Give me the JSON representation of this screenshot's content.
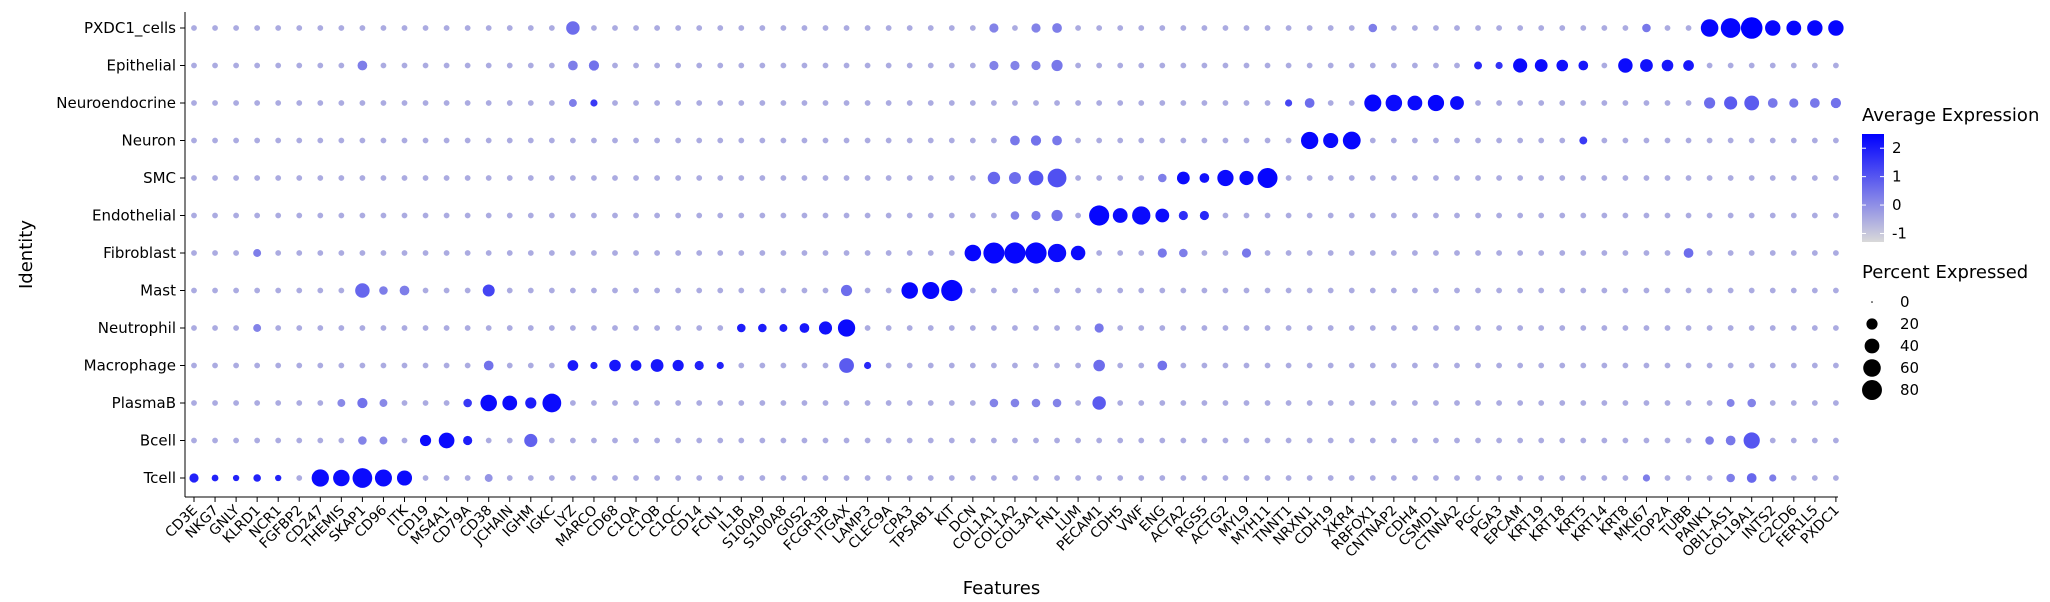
{
  "chart_data": {
    "type": "dotplot",
    "xlabel": "Features",
    "ylabel": "Identity",
    "identities": [
      "PXDC1_cells",
      "Epithelial",
      "Neuroendocrine",
      "Neuron",
      "SMC",
      "Endothelial",
      "Fibroblast",
      "Mast",
      "Neutrophil",
      "Macrophage",
      "PlasmaB",
      "Bcell",
      "Tcell"
    ],
    "features": [
      "CD3E",
      "NKG7",
      "GNLY",
      "KLRD1",
      "NCR1",
      "FGFBP2",
      "CD247",
      "THEMIS",
      "SKAP1",
      "CD96",
      "ITK",
      "CD19",
      "MS4A1",
      "CD79A",
      "CD38",
      "JCHAIN",
      "IGHM",
      "IGKC",
      "LYZ",
      "MARCO",
      "CD68",
      "C1QA",
      "C1QB",
      "C1QC",
      "CD14",
      "FCN1",
      "IL1B",
      "S100A9",
      "S100A8",
      "G0S2",
      "FCGR3B",
      "ITGAX",
      "LAMP3",
      "CLEC9A",
      "CPA3",
      "TPSAB1",
      "KIT",
      "DCN",
      "COL1A1",
      "COL1A2",
      "COL3A1",
      "FN1",
      "LUM",
      "PECAM1",
      "CDH5",
      "VWF",
      "ENG",
      "ACTA2",
      "RGS5",
      "ACTG2",
      "MYL9",
      "MYH11",
      "TNNT1",
      "NRXN1",
      "CDH19",
      "XKR4",
      "RBFOX1",
      "CNTNAP2",
      "CDH4",
      "CSMD1",
      "CTNNA2",
      "PGC",
      "PGA3",
      "EPCAM",
      "KRT19",
      "KRT18",
      "KRT5",
      "KRT14",
      "KRT8",
      "MKI67",
      "TOP2A",
      "TUBB",
      "PANK1",
      "OBI1-AS1",
      "COL19A1",
      "INTS2",
      "C2CD6",
      "FER1L5",
      "PXDC1"
    ],
    "legend": {
      "color_title": "Average Expression",
      "color_ticks": [
        2,
        1,
        0,
        -1
      ],
      "color_range": [
        -1.3,
        2.5
      ],
      "color_low": "#d9d9d9",
      "color_high": "#0000ff",
      "size_title": "Percent Expressed",
      "size_ticks": [
        0,
        20,
        40,
        60,
        80
      ],
      "position": "right"
    },
    "background_level": {
      "avg_exp": -0.5,
      "pct_exp": 3
    },
    "cells": [
      {
        "row": "Tcell",
        "feature": "CD3E",
        "avg_exp": 1.9,
        "pct_exp": 12
      },
      {
        "row": "Tcell",
        "feature": "NKG7",
        "avg_exp": 1.9,
        "pct_exp": 5
      },
      {
        "row": "Tcell",
        "feature": "GNLY",
        "avg_exp": 1.9,
        "pct_exp": 4
      },
      {
        "row": "Tcell",
        "feature": "KLRD1",
        "avg_exp": 1.9,
        "pct_exp": 7
      },
      {
        "row": "Tcell",
        "feature": "NCR1",
        "avg_exp": 1.9,
        "pct_exp": 4
      },
      {
        "row": "Tcell",
        "feature": "CD247",
        "avg_exp": 2.3,
        "pct_exp": 58
      },
      {
        "row": "Tcell",
        "feature": "THEMIS",
        "avg_exp": 2.3,
        "pct_exp": 52
      },
      {
        "row": "Tcell",
        "feature": "SKAP1",
        "avg_exp": 2.3,
        "pct_exp": 78
      },
      {
        "row": "Tcell",
        "feature": "CD96",
        "avg_exp": 2.3,
        "pct_exp": 56
      },
      {
        "row": "Tcell",
        "feature": "ITK",
        "avg_exp": 2.3,
        "pct_exp": 42
      },
      {
        "row": "Tcell",
        "feature": "CD38",
        "avg_exp": -0.1,
        "pct_exp": 8
      },
      {
        "row": "Tcell",
        "feature": "MKI67",
        "avg_exp": 0.3,
        "pct_exp": 6
      },
      {
        "row": "Tcell",
        "feature": "OBI1-AS1",
        "avg_exp": 0.3,
        "pct_exp": 10
      },
      {
        "row": "Tcell",
        "feature": "COL19A1",
        "avg_exp": 0.7,
        "pct_exp": 14
      },
      {
        "row": "Tcell",
        "feature": "INTS2",
        "avg_exp": 0.3,
        "pct_exp": 6
      },
      {
        "row": "Bcell",
        "feature": "SKAP1",
        "avg_exp": 0.2,
        "pct_exp": 10
      },
      {
        "row": "Bcell",
        "feature": "CD96",
        "avg_exp": 0.1,
        "pct_exp": 8
      },
      {
        "row": "Bcell",
        "feature": "CD19",
        "avg_exp": 2.3,
        "pct_exp": 20
      },
      {
        "row": "Bcell",
        "feature": "MS4A1",
        "avg_exp": 2.3,
        "pct_exp": 46
      },
      {
        "row": "Bcell",
        "feature": "CD79A",
        "avg_exp": 2.0,
        "pct_exp": 12
      },
      {
        "row": "Bcell",
        "feature": "IGHM",
        "avg_exp": 0.8,
        "pct_exp": 30
      },
      {
        "row": "Bcell",
        "feature": "PANK1",
        "avg_exp": 0.3,
        "pct_exp": 10
      },
      {
        "row": "Bcell",
        "feature": "OBI1-AS1",
        "avg_exp": 0.4,
        "pct_exp": 14
      },
      {
        "row": "Bcell",
        "feature": "COL19A1",
        "avg_exp": 1.0,
        "pct_exp": 50
      },
      {
        "row": "PlasmaB",
        "feature": "THEMIS",
        "avg_exp": 0.1,
        "pct_exp": 8
      },
      {
        "row": "PlasmaB",
        "feature": "SKAP1",
        "avg_exp": 0.5,
        "pct_exp": 16
      },
      {
        "row": "PlasmaB",
        "feature": "CD96",
        "avg_exp": 0.1,
        "pct_exp": 8
      },
      {
        "row": "PlasmaB",
        "feature": "CD79A",
        "avg_exp": 1.5,
        "pct_exp": 10
      },
      {
        "row": "PlasmaB",
        "feature": "CD38",
        "avg_exp": 2.3,
        "pct_exp": 52
      },
      {
        "row": "PlasmaB",
        "feature": "JCHAIN",
        "avg_exp": 2.3,
        "pct_exp": 40
      },
      {
        "row": "PlasmaB",
        "feature": "IGHM",
        "avg_exp": 2.0,
        "pct_exp": 20
      },
      {
        "row": "PlasmaB",
        "feature": "IGKC",
        "avg_exp": 2.3,
        "pct_exp": 70
      },
      {
        "row": "PlasmaB",
        "feature": "COL1A1",
        "avg_exp": 0.2,
        "pct_exp": 10
      },
      {
        "row": "PlasmaB",
        "feature": "COL1A2",
        "avg_exp": 0.2,
        "pct_exp": 10
      },
      {
        "row": "PlasmaB",
        "feature": "COL3A1",
        "avg_exp": 0.2,
        "pct_exp": 10
      },
      {
        "row": "PlasmaB",
        "feature": "FN1",
        "avg_exp": 0.2,
        "pct_exp": 10
      },
      {
        "row": "PlasmaB",
        "feature": "PECAM1",
        "avg_exp": 0.9,
        "pct_exp": 32
      },
      {
        "row": "PlasmaB",
        "feature": "OBI1-AS1",
        "avg_exp": 0.2,
        "pct_exp": 8
      },
      {
        "row": "PlasmaB",
        "feature": "COL19A1",
        "avg_exp": 0.2,
        "pct_exp": 10
      },
      {
        "row": "Macrophage",
        "feature": "CD38",
        "avg_exp": 0.5,
        "pct_exp": 14
      },
      {
        "row": "Macrophage",
        "feature": "LYZ",
        "avg_exp": 2.1,
        "pct_exp": 18
      },
      {
        "row": "Macrophage",
        "feature": "MARCO",
        "avg_exp": 1.9,
        "pct_exp": 6
      },
      {
        "row": "Macrophage",
        "feature": "CD68",
        "avg_exp": 2.1,
        "pct_exp": 22
      },
      {
        "row": "Macrophage",
        "feature": "C1QA",
        "avg_exp": 2.1,
        "pct_exp": 18
      },
      {
        "row": "Macrophage",
        "feature": "C1QB",
        "avg_exp": 2.1,
        "pct_exp": 28
      },
      {
        "row": "Macrophage",
        "feature": "C1QC",
        "avg_exp": 2.1,
        "pct_exp": 20
      },
      {
        "row": "Macrophage",
        "feature": "CD14",
        "avg_exp": 1.9,
        "pct_exp": 12
      },
      {
        "row": "Macrophage",
        "feature": "FCN1",
        "avg_exp": 1.9,
        "pct_exp": 6
      },
      {
        "row": "Macrophage",
        "feature": "ITGAX",
        "avg_exp": 0.9,
        "pct_exp": 40
      },
      {
        "row": "Macrophage",
        "feature": "LAMP3",
        "avg_exp": 1.8,
        "pct_exp": 6
      },
      {
        "row": "Macrophage",
        "feature": "PECAM1",
        "avg_exp": 0.6,
        "pct_exp": 22
      },
      {
        "row": "Macrophage",
        "feature": "ENG",
        "avg_exp": 0.5,
        "pct_exp": 14
      },
      {
        "row": "Neutrophil",
        "feature": "KLRD1",
        "avg_exp": 0.2,
        "pct_exp": 8
      },
      {
        "row": "Neutrophil",
        "feature": "IL1B",
        "avg_exp": 2.0,
        "pct_exp": 10
      },
      {
        "row": "Neutrophil",
        "feature": "S100A9",
        "avg_exp": 2.0,
        "pct_exp": 10
      },
      {
        "row": "Neutrophil",
        "feature": "S100A8",
        "avg_exp": 2.0,
        "pct_exp": 8
      },
      {
        "row": "Neutrophil",
        "feature": "G0S2",
        "avg_exp": 2.1,
        "pct_exp": 14
      },
      {
        "row": "Neutrophil",
        "feature": "FCGR3B",
        "avg_exp": 2.2,
        "pct_exp": 30
      },
      {
        "row": "Neutrophil",
        "feature": "ITGAX",
        "avg_exp": 2.3,
        "pct_exp": 58
      },
      {
        "row": "Neutrophil",
        "feature": "PECAM1",
        "avg_exp": 0.4,
        "pct_exp": 12
      },
      {
        "row": "Mast",
        "feature": "SKAP1",
        "avg_exp": 0.7,
        "pct_exp": 38
      },
      {
        "row": "Mast",
        "feature": "CD96",
        "avg_exp": 0.3,
        "pct_exp": 10
      },
      {
        "row": "Mast",
        "feature": "ITK",
        "avg_exp": 0.3,
        "pct_exp": 14
      },
      {
        "row": "Mast",
        "feature": "CD38",
        "avg_exp": 1.3,
        "pct_exp": 24
      },
      {
        "row": "Mast",
        "feature": "ITGAX",
        "avg_exp": 0.6,
        "pct_exp": 20
      },
      {
        "row": "Mast",
        "feature": "CPA3",
        "avg_exp": 2.4,
        "pct_exp": 52
      },
      {
        "row": "Mast",
        "feature": "TPSAB1",
        "avg_exp": 2.4,
        "pct_exp": 56
      },
      {
        "row": "Mast",
        "feature": "KIT",
        "avg_exp": 2.4,
        "pct_exp": 92
      },
      {
        "row": "Fibroblast",
        "feature": "KLRD1",
        "avg_exp": 0.3,
        "pct_exp": 8
      },
      {
        "row": "Fibroblast",
        "feature": "DCN",
        "avg_exp": 2.4,
        "pct_exp": 52
      },
      {
        "row": "Fibroblast",
        "feature": "COL1A1",
        "avg_exp": 2.4,
        "pct_exp": 90
      },
      {
        "row": "Fibroblast",
        "feature": "COL1A2",
        "avg_exp": 2.4,
        "pct_exp": 92
      },
      {
        "row": "Fibroblast",
        "feature": "COL3A1",
        "avg_exp": 2.4,
        "pct_exp": 92
      },
      {
        "row": "Fibroblast",
        "feature": "FN1",
        "avg_exp": 2.3,
        "pct_exp": 66
      },
      {
        "row": "Fibroblast",
        "feature": "LUM",
        "avg_exp": 2.3,
        "pct_exp": 38
      },
      {
        "row": "Fibroblast",
        "feature": "ENG",
        "avg_exp": 0.4,
        "pct_exp": 12
      },
      {
        "row": "Fibroblast",
        "feature": "ACTA2",
        "avg_exp": 0.3,
        "pct_exp": 10
      },
      {
        "row": "Fibroblast",
        "feature": "MYL9",
        "avg_exp": 0.4,
        "pct_exp": 12
      },
      {
        "row": "Fibroblast",
        "feature": "TUBB",
        "avg_exp": 0.6,
        "pct_exp": 14
      },
      {
        "row": "Endothelial",
        "feature": "COL1A2",
        "avg_exp": 0.2,
        "pct_exp": 10
      },
      {
        "row": "Endothelial",
        "feature": "COL3A1",
        "avg_exp": 0.3,
        "pct_exp": 12
      },
      {
        "row": "Endothelial",
        "feature": "FN1",
        "avg_exp": 0.5,
        "pct_exp": 20
      },
      {
        "row": "Endothelial",
        "feature": "PECAM1",
        "avg_exp": 2.4,
        "pct_exp": 82
      },
      {
        "row": "Endothelial",
        "feature": "CDH5",
        "avg_exp": 2.3,
        "pct_exp": 40
      },
      {
        "row": "Endothelial",
        "feature": "VWF",
        "avg_exp": 2.3,
        "pct_exp": 66
      },
      {
        "row": "Endothelial",
        "feature": "ENG",
        "avg_exp": 2.3,
        "pct_exp": 34
      },
      {
        "row": "Endothelial",
        "feature": "ACTA2",
        "avg_exp": 1.7,
        "pct_exp": 12
      },
      {
        "row": "Endothelial",
        "feature": "RGS5",
        "avg_exp": 1.8,
        "pct_exp": 12
      },
      {
        "row": "SMC",
        "feature": "COL1A1",
        "avg_exp": 0.7,
        "pct_exp": 26
      },
      {
        "row": "SMC",
        "feature": "COL1A2",
        "avg_exp": 0.6,
        "pct_exp": 24
      },
      {
        "row": "SMC",
        "feature": "COL3A1",
        "avg_exp": 1.0,
        "pct_exp": 40
      },
      {
        "row": "SMC",
        "feature": "FN1",
        "avg_exp": 1.1,
        "pct_exp": 70
      },
      {
        "row": "SMC",
        "feature": "ENG",
        "avg_exp": 0.3,
        "pct_exp": 10
      },
      {
        "row": "SMC",
        "feature": "ACTA2",
        "avg_exp": 2.3,
        "pct_exp": 28
      },
      {
        "row": "SMC",
        "feature": "RGS5",
        "avg_exp": 2.2,
        "pct_exp": 14
      },
      {
        "row": "SMC",
        "feature": "ACTG2",
        "avg_exp": 2.3,
        "pct_exp": 50
      },
      {
        "row": "SMC",
        "feature": "MYL9",
        "avg_exp": 2.3,
        "pct_exp": 36
      },
      {
        "row": "SMC",
        "feature": "MYH11",
        "avg_exp": 2.4,
        "pct_exp": 80
      },
      {
        "row": "Neuron",
        "feature": "COL1A2",
        "avg_exp": 0.4,
        "pct_exp": 14
      },
      {
        "row": "Neuron",
        "feature": "COL3A1",
        "avg_exp": 0.5,
        "pct_exp": 16
      },
      {
        "row": "Neuron",
        "feature": "FN1",
        "avg_exp": 0.4,
        "pct_exp": 14
      },
      {
        "row": "Neuron",
        "feature": "NRXN1",
        "avg_exp": 2.4,
        "pct_exp": 58
      },
      {
        "row": "Neuron",
        "feature": "CDH19",
        "avg_exp": 2.3,
        "pct_exp": 42
      },
      {
        "row": "Neuron",
        "feature": "XKR4",
        "avg_exp": 2.4,
        "pct_exp": 62
      },
      {
        "row": "Neuron",
        "feature": "KRT5",
        "avg_exp": 1.5,
        "pct_exp": 8
      },
      {
        "row": "Neuroendocrine",
        "feature": "LYZ",
        "avg_exp": 0.3,
        "pct_exp": 8
      },
      {
        "row": "Neuroendocrine",
        "feature": "MARCO",
        "avg_exp": 1.5,
        "pct_exp": 6
      },
      {
        "row": "Neuroendocrine",
        "feature": "TNNT1",
        "avg_exp": 1.3,
        "pct_exp": 6
      },
      {
        "row": "Neuroendocrine",
        "feature": "NRXN1",
        "avg_exp": 0.6,
        "pct_exp": 14
      },
      {
        "row": "Neuroendocrine",
        "feature": "RBFOX1",
        "avg_exp": 2.4,
        "pct_exp": 56
      },
      {
        "row": "Neuroendocrine",
        "feature": "CNTNAP2",
        "avg_exp": 2.3,
        "pct_exp": 52
      },
      {
        "row": "Neuroendocrine",
        "feature": "CDH4",
        "avg_exp": 2.3,
        "pct_exp": 40
      },
      {
        "row": "Neuroendocrine",
        "feature": "CSMD1",
        "avg_exp": 2.4,
        "pct_exp": 50
      },
      {
        "row": "Neuroendocrine",
        "feature": "CTNNA2",
        "avg_exp": 2.3,
        "pct_exp": 34
      },
      {
        "row": "Neuroendocrine",
        "feature": "PANK1",
        "avg_exp": 0.6,
        "pct_exp": 20
      },
      {
        "row": "Neuroendocrine",
        "feature": "OBI1-AS1",
        "avg_exp": 0.9,
        "pct_exp": 30
      },
      {
        "row": "Neuroendocrine",
        "feature": "COL19A1",
        "avg_exp": 0.9,
        "pct_exp": 40
      },
      {
        "row": "Neuroendocrine",
        "feature": "INTS2",
        "avg_exp": 0.4,
        "pct_exp": 14
      },
      {
        "row": "Neuroendocrine",
        "feature": "C2CD6",
        "avg_exp": 0.4,
        "pct_exp": 12
      },
      {
        "row": "Neuroendocrine",
        "feature": "FER1L5",
        "avg_exp": 0.4,
        "pct_exp": 14
      },
      {
        "row": "Neuroendocrine",
        "feature": "PXDC1",
        "avg_exp": 0.5,
        "pct_exp": 16
      },
      {
        "row": "Epithelial",
        "feature": "SKAP1",
        "avg_exp": 0.3,
        "pct_exp": 14
      },
      {
        "row": "Epithelial",
        "feature": "LYZ",
        "avg_exp": 0.3,
        "pct_exp": 14
      },
      {
        "row": "Epithelial",
        "feature": "MARCO",
        "avg_exp": 0.5,
        "pct_exp": 16
      },
      {
        "row": "Epithelial",
        "feature": "COL1A1",
        "avg_exp": 0.2,
        "pct_exp": 12
      },
      {
        "row": "Epithelial",
        "feature": "COL1A2",
        "avg_exp": 0.2,
        "pct_exp": 12
      },
      {
        "row": "Epithelial",
        "feature": "COL3A1",
        "avg_exp": 0.2,
        "pct_exp": 12
      },
      {
        "row": "Epithelial",
        "feature": "FN1",
        "avg_exp": 0.4,
        "pct_exp": 20
      },
      {
        "row": "Epithelial",
        "feature": "PGC",
        "avg_exp": 1.8,
        "pct_exp": 8
      },
      {
        "row": "Epithelial",
        "feature": "PGA3",
        "avg_exp": 1.6,
        "pct_exp": 6
      },
      {
        "row": "Epithelial",
        "feature": "EPCAM",
        "avg_exp": 2.3,
        "pct_exp": 36
      },
      {
        "row": "Epithelial",
        "feature": "KRT19",
        "avg_exp": 2.3,
        "pct_exp": 28
      },
      {
        "row": "Epithelial",
        "feature": "KRT18",
        "avg_exp": 2.2,
        "pct_exp": 22
      },
      {
        "row": "Epithelial",
        "feature": "KRT5",
        "avg_exp": 2.1,
        "pct_exp": 14
      },
      {
        "row": "Epithelial",
        "feature": "KRT8",
        "avg_exp": 2.3,
        "pct_exp": 38
      },
      {
        "row": "Epithelial",
        "feature": "MKI67",
        "avg_exp": 2.2,
        "pct_exp": 28
      },
      {
        "row": "Epithelial",
        "feature": "TOP2A",
        "avg_exp": 2.1,
        "pct_exp": 22
      },
      {
        "row": "Epithelial",
        "feature": "TUBB",
        "avg_exp": 2.1,
        "pct_exp": 18
      },
      {
        "row": "PXDC1_cells",
        "feature": "LYZ",
        "avg_exp": 0.6,
        "pct_exp": 32
      },
      {
        "row": "PXDC1_cells",
        "feature": "COL1A1",
        "avg_exp": 0.2,
        "pct_exp": 12
      },
      {
        "row": "PXDC1_cells",
        "feature": "COL3A1",
        "avg_exp": 0.2,
        "pct_exp": 12
      },
      {
        "row": "PXDC1_cells",
        "feature": "FN1",
        "avg_exp": 0.3,
        "pct_exp": 14
      },
      {
        "row": "PXDC1_cells",
        "feature": "RBFOX1",
        "avg_exp": 0.3,
        "pct_exp": 10
      },
      {
        "row": "PXDC1_cells",
        "feature": "MKI67",
        "avg_exp": 0.4,
        "pct_exp": 10
      },
      {
        "row": "PXDC1_cells",
        "feature": "PANK1",
        "avg_exp": 2.4,
        "pct_exp": 60
      },
      {
        "row": "PXDC1_cells",
        "feature": "OBI1-AS1",
        "avg_exp": 2.4,
        "pct_exp": 78
      },
      {
        "row": "PXDC1_cells",
        "feature": "COL19A1",
        "avg_exp": 2.5,
        "pct_exp": 96
      },
      {
        "row": "PXDC1_cells",
        "feature": "INTS2",
        "avg_exp": 2.4,
        "pct_exp": 44
      },
      {
        "row": "PXDC1_cells",
        "feature": "C2CD6",
        "avg_exp": 2.4,
        "pct_exp": 40
      },
      {
        "row": "PXDC1_cells",
        "feature": "FER1L5",
        "avg_exp": 2.4,
        "pct_exp": 44
      },
      {
        "row": "PXDC1_cells",
        "feature": "PXDC1",
        "avg_exp": 2.4,
        "pct_exp": 44
      }
    ]
  }
}
